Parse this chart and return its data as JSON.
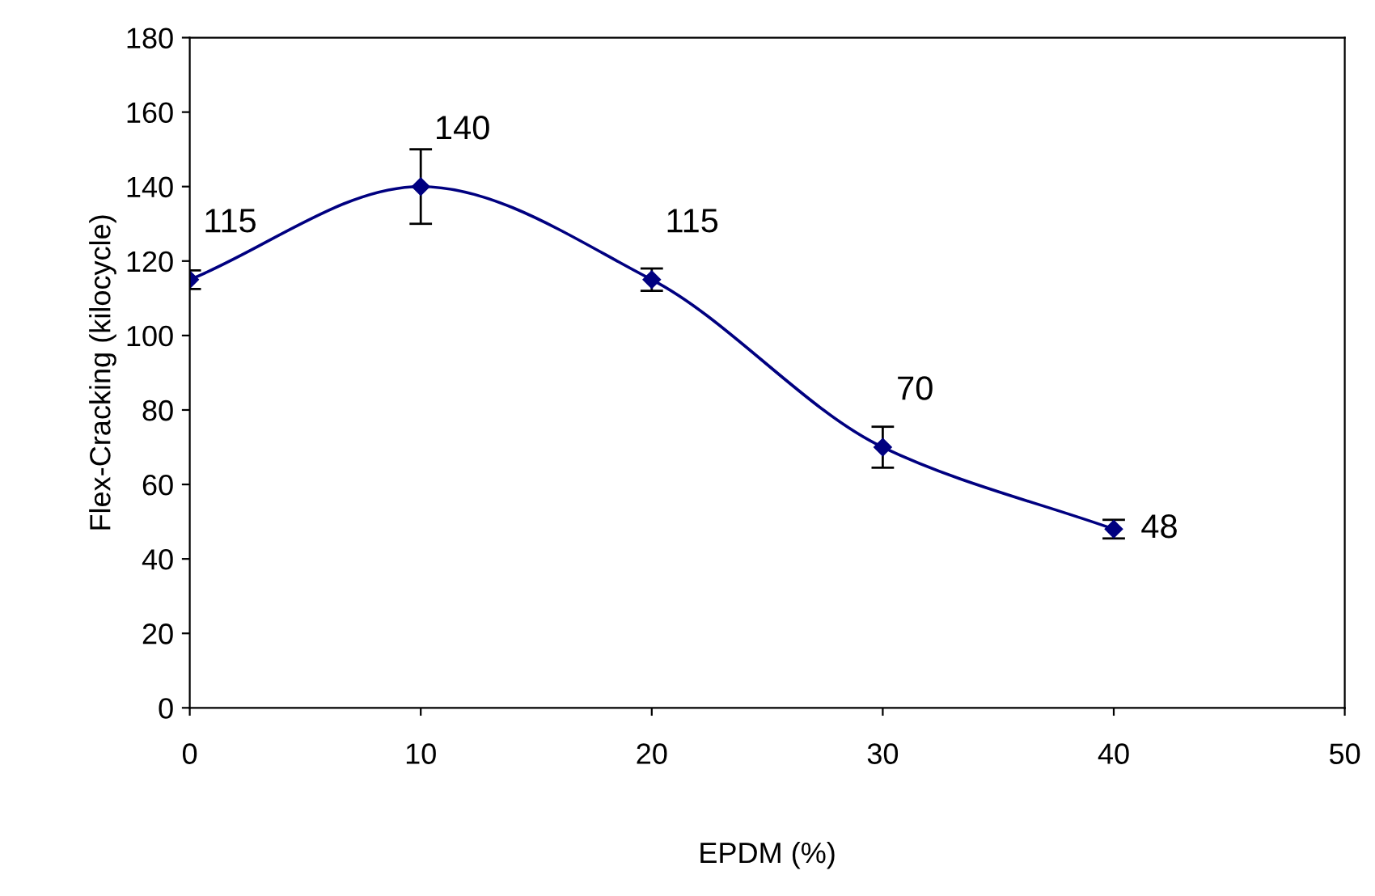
{
  "chart_data": {
    "type": "line",
    "xlabel": "EPDM (%)",
    "ylabel": "Flex-Cracking (kilocycle)",
    "x": [
      0,
      10,
      20,
      30,
      40
    ],
    "series": [
      {
        "color": "#000080",
        "values": [
          115,
          140,
          115,
          70,
          48
        ],
        "errors": [
          2.5,
          10,
          3,
          5.5,
          2.5
        ]
      }
    ],
    "xlim": [
      0,
      50
    ],
    "xticks": [
      0,
      10,
      20,
      30,
      40,
      50
    ],
    "ylim": [
      0,
      180
    ],
    "yticks": [
      0,
      20,
      40,
      60,
      80,
      100,
      120,
      140,
      160,
      180
    ],
    "data_labels": true,
    "marker": "diamond",
    "line_style": "solid",
    "grid": false,
    "legend": false
  }
}
